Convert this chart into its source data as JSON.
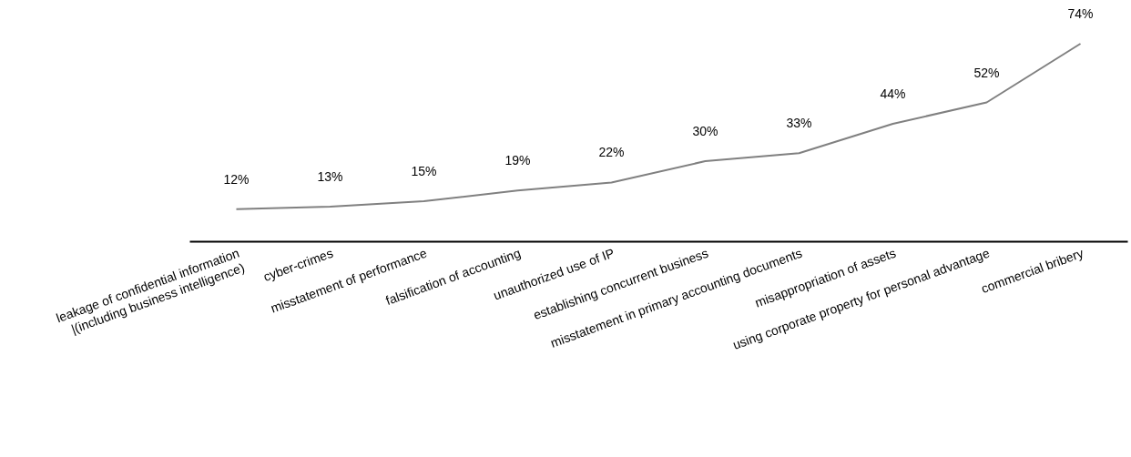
{
  "chart_data": {
    "type": "line",
    "categories": [
      "leakage of confidential information\n|(including business intelligence)",
      "cyber-crimes",
      "misstatement of performance",
      "falsification of accounting",
      "unauthorized use of IP",
      "establishing concurrent business",
      "misstatement in primary accounting documents",
      "misappropriation of assets",
      "using corporate property for personal advantage",
      "commercial bribery"
    ],
    "series": [
      {
        "color": "#808080",
        "values": [
          12,
          13,
          15,
          19,
          22,
          30,
          33,
          44,
          52,
          74
        ],
        "value_labels": [
          "12%",
          "13%",
          "15%",
          "19%",
          "22%",
          "30%",
          "33%",
          "44%",
          "52%",
          "74%"
        ]
      }
    ],
    "marker": "none",
    "line_style": "solid",
    "tick_labels": "x"
  }
}
